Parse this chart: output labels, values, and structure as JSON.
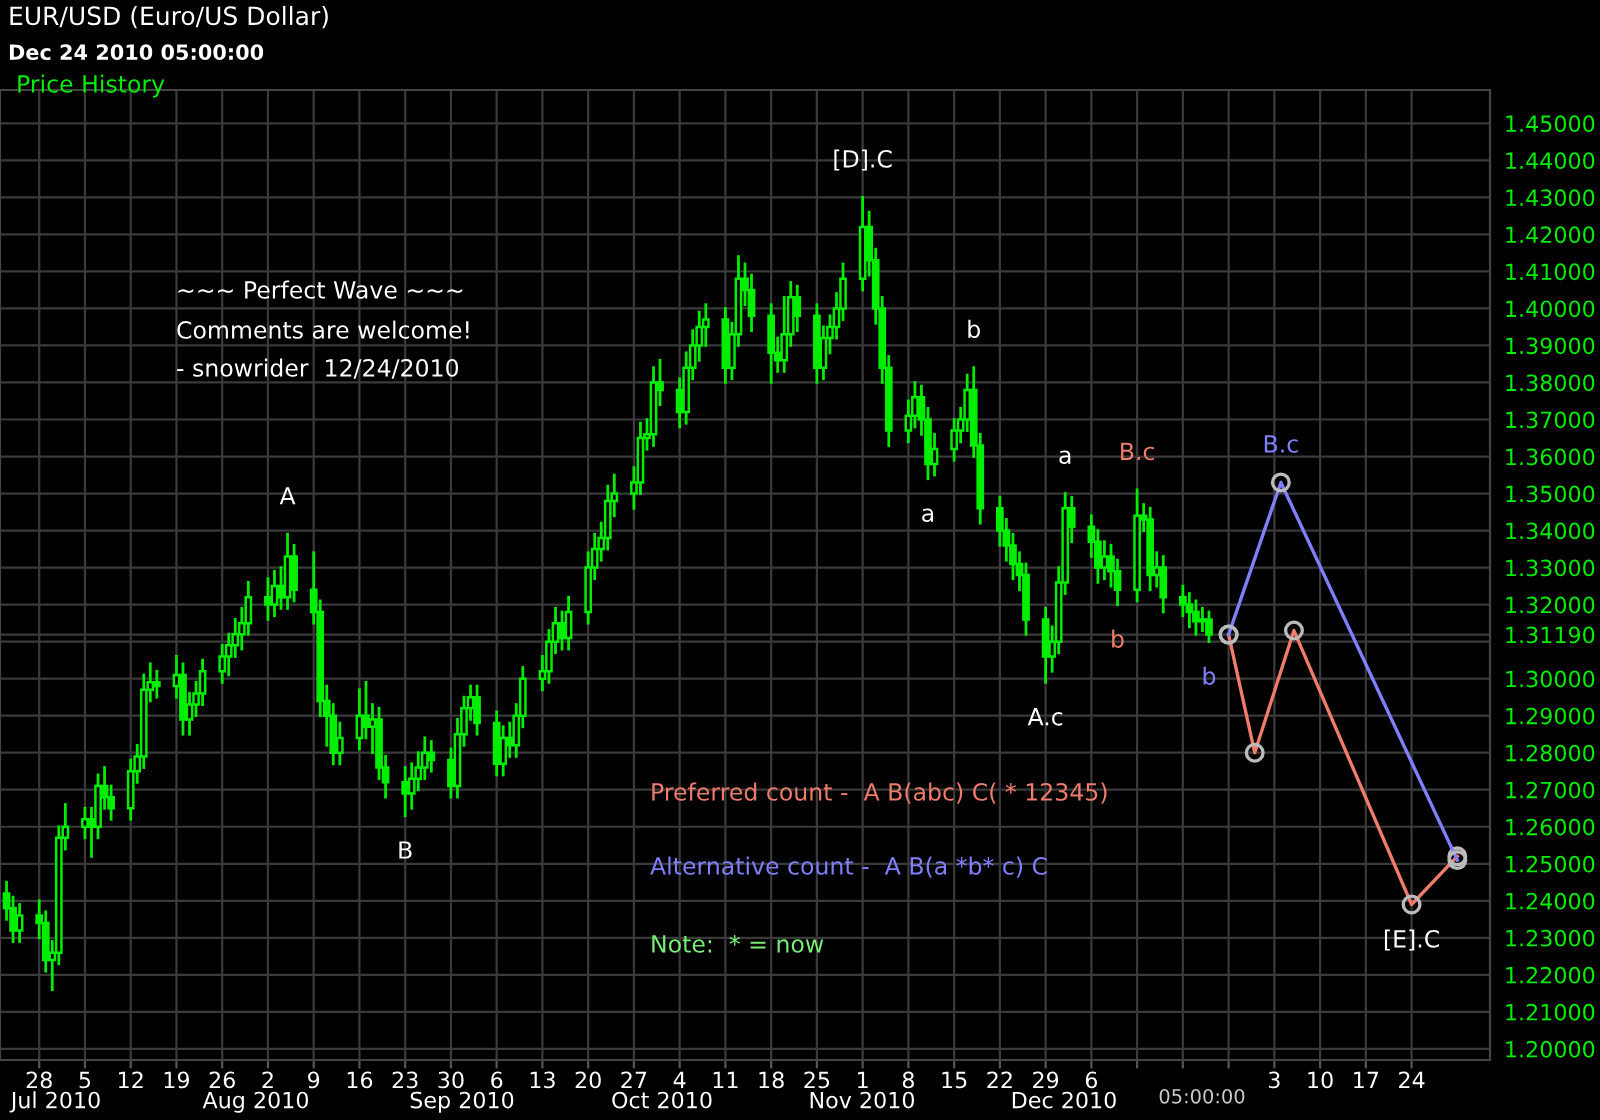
{
  "chart_data": {
    "type": "candlestick",
    "title": "EUR/USD (Euro/US Dollar)",
    "subtitle": "Dec 24 2010 05:00:00",
    "color": "#00ee00",
    "x": [
      "2010-06-23",
      "2010-06-24",
      "2010-06-25",
      "2010-06-28",
      "2010-06-29",
      "2010-06-30",
      "2010-07-01",
      "2010-07-02",
      "2010-07-05",
      "2010-07-06",
      "2010-07-07",
      "2010-07-08",
      "2010-07-09",
      "2010-07-12",
      "2010-07-13",
      "2010-07-14",
      "2010-07-15",
      "2010-07-16",
      "2010-07-19",
      "2010-07-20",
      "2010-07-21",
      "2010-07-22",
      "2010-07-23",
      "2010-07-26",
      "2010-07-27",
      "2010-07-28",
      "2010-07-29",
      "2010-07-30",
      "2010-08-02",
      "2010-08-03",
      "2010-08-04",
      "2010-08-05",
      "2010-08-06",
      "2010-08-09",
      "2010-08-10",
      "2010-08-11",
      "2010-08-12",
      "2010-08-13",
      "2010-08-16",
      "2010-08-17",
      "2010-08-18",
      "2010-08-19",
      "2010-08-20",
      "2010-08-23",
      "2010-08-24",
      "2010-08-25",
      "2010-08-26",
      "2010-08-27",
      "2010-08-30",
      "2010-08-31",
      "2010-09-01",
      "2010-09-02",
      "2010-09-03",
      "2010-09-06",
      "2010-09-07",
      "2010-09-08",
      "2010-09-09",
      "2010-09-10",
      "2010-09-13",
      "2010-09-14",
      "2010-09-15",
      "2010-09-16",
      "2010-09-17",
      "2010-09-20",
      "2010-09-21",
      "2010-09-22",
      "2010-09-23",
      "2010-09-24",
      "2010-09-27",
      "2010-09-28",
      "2010-09-29",
      "2010-09-30",
      "2010-10-01",
      "2010-10-04",
      "2010-10-05",
      "2010-10-06",
      "2010-10-07",
      "2010-10-08",
      "2010-10-11",
      "2010-10-12",
      "2010-10-13",
      "2010-10-14",
      "2010-10-15",
      "2010-10-18",
      "2010-10-19",
      "2010-10-20",
      "2010-10-21",
      "2010-10-22",
      "2010-10-25",
      "2010-10-26",
      "2010-10-27",
      "2010-10-28",
      "2010-10-29",
      "2010-11-01",
      "2010-11-02",
      "2010-11-03",
      "2010-11-04",
      "2010-11-05",
      "2010-11-08",
      "2010-11-09",
      "2010-11-10",
      "2010-11-11",
      "2010-11-12",
      "2010-11-15",
      "2010-11-16",
      "2010-11-17",
      "2010-11-18",
      "2010-11-19",
      "2010-11-22",
      "2010-11-23",
      "2010-11-24",
      "2010-11-25",
      "2010-11-26",
      "2010-11-29",
      "2010-11-30",
      "2010-12-01",
      "2010-12-02",
      "2010-12-03",
      "2010-12-06",
      "2010-12-07",
      "2010-12-08",
      "2010-12-09",
      "2010-12-10",
      "2010-12-13",
      "2010-12-14",
      "2010-12-15",
      "2010-12-16",
      "2010-12-17",
      "2010-12-20",
      "2010-12-21",
      "2010-12-22",
      "2010-12-23",
      "2010-12-24"
    ],
    "ohlc": [
      [
        1.242,
        1.245,
        1.235,
        1.238
      ],
      [
        1.238,
        1.241,
        1.229,
        1.232
      ],
      [
        1.232,
        1.239,
        1.229,
        1.236
      ],
      [
        1.236,
        1.24,
        1.23,
        1.234
      ],
      [
        1.234,
        1.237,
        1.221,
        1.224
      ],
      [
        1.224,
        1.229,
        1.216,
        1.226
      ],
      [
        1.226,
        1.26,
        1.223,
        1.257
      ],
      [
        1.257,
        1.266,
        1.254,
        1.26
      ],
      [
        1.26,
        1.265,
        1.257,
        1.262
      ],
      [
        1.262,
        1.265,
        1.252,
        1.26
      ],
      [
        1.26,
        1.274,
        1.257,
        1.271
      ],
      [
        1.271,
        1.276,
        1.265,
        1.268
      ],
      [
        1.268,
        1.271,
        1.262,
        1.265
      ],
      [
        1.265,
        1.278,
        1.262,
        1.275
      ],
      [
        1.275,
        1.282,
        1.272,
        1.279
      ],
      [
        1.279,
        1.301,
        1.276,
        1.297
      ],
      [
        1.297,
        1.304,
        1.294,
        1.299
      ],
      [
        1.299,
        1.302,
        1.295,
        1.298
      ],
      [
        1.298,
        1.306,
        1.295,
        1.301
      ],
      [
        1.301,
        1.304,
        1.285,
        1.289
      ],
      [
        1.289,
        1.296,
        1.285,
        1.293
      ],
      [
        1.293,
        1.299,
        1.29,
        1.296
      ],
      [
        1.296,
        1.305,
        1.293,
        1.302
      ],
      [
        1.302,
        1.309,
        1.299,
        1.306
      ],
      [
        1.306,
        1.312,
        1.301,
        1.309
      ],
      [
        1.309,
        1.316,
        1.306,
        1.312
      ],
      [
        1.312,
        1.319,
        1.308,
        1.315
      ],
      [
        1.315,
        1.326,
        1.312,
        1.322
      ],
      [
        1.322,
        1.327,
        1.316,
        1.32
      ],
      [
        1.32,
        1.329,
        1.317,
        1.325
      ],
      [
        1.325,
        1.33,
        1.319,
        1.322
      ],
      [
        1.322,
        1.339,
        1.319,
        1.333
      ],
      [
        1.333,
        1.336,
        1.321,
        1.324
      ],
      [
        1.324,
        1.334,
        1.315,
        1.318
      ],
      [
        1.318,
        1.321,
        1.29,
        1.294
      ],
      [
        1.294,
        1.298,
        1.282,
        1.29
      ],
      [
        1.29,
        1.293,
        1.277,
        1.28
      ],
      [
        1.28,
        1.288,
        1.277,
        1.284
      ],
      [
        1.284,
        1.297,
        1.281,
        1.29
      ],
      [
        1.29,
        1.299,
        1.284,
        1.287
      ],
      [
        1.287,
        1.293,
        1.28,
        1.289
      ],
      [
        1.289,
        1.292,
        1.273,
        1.276
      ],
      [
        1.276,
        1.279,
        1.268,
        1.272
      ],
      [
        1.272,
        1.276,
        1.263,
        1.269
      ],
      [
        1.269,
        1.277,
        1.265,
        1.273
      ],
      [
        1.273,
        1.28,
        1.27,
        1.276
      ],
      [
        1.276,
        1.284,
        1.273,
        1.28
      ],
      [
        1.28,
        1.283,
        1.275,
        1.278
      ],
      [
        1.278,
        1.281,
        1.268,
        1.271
      ],
      [
        1.271,
        1.289,
        1.268,
        1.285
      ],
      [
        1.285,
        1.295,
        1.282,
        1.292
      ],
      [
        1.292,
        1.298,
        1.289,
        1.295
      ],
      [
        1.295,
        1.298,
        1.285,
        1.288
      ],
      [
        1.288,
        1.291,
        1.274,
        1.277
      ],
      [
        1.277,
        1.287,
        1.274,
        1.284
      ],
      [
        1.284,
        1.288,
        1.279,
        1.282
      ],
      [
        1.282,
        1.293,
        1.279,
        1.29
      ],
      [
        1.29,
        1.303,
        1.287,
        1.3
      ],
      [
        1.3,
        1.306,
        1.297,
        1.302
      ],
      [
        1.302,
        1.313,
        1.299,
        1.31
      ],
      [
        1.31,
        1.319,
        1.307,
        1.315
      ],
      [
        1.315,
        1.318,
        1.308,
        1.311
      ],
      [
        1.311,
        1.322,
        1.308,
        1.318
      ],
      [
        1.318,
        1.334,
        1.315,
        1.33
      ],
      [
        1.33,
        1.339,
        1.327,
        1.335
      ],
      [
        1.335,
        1.342,
        1.332,
        1.338
      ],
      [
        1.338,
        1.352,
        1.335,
        1.348
      ],
      [
        1.348,
        1.355,
        1.344,
        1.35
      ],
      [
        1.35,
        1.357,
        1.346,
        1.353
      ],
      [
        1.353,
        1.369,
        1.35,
        1.365
      ],
      [
        1.365,
        1.37,
        1.362,
        1.366
      ],
      [
        1.366,
        1.384,
        1.363,
        1.38
      ],
      [
        1.38,
        1.386,
        1.374,
        1.378
      ],
      [
        1.378,
        1.381,
        1.368,
        1.372
      ],
      [
        1.372,
        1.388,
        1.369,
        1.384
      ],
      [
        1.384,
        1.394,
        1.381,
        1.39
      ],
      [
        1.39,
        1.399,
        1.386,
        1.395
      ],
      [
        1.395,
        1.401,
        1.39,
        1.397
      ],
      [
        1.397,
        1.4,
        1.38,
        1.384
      ],
      [
        1.384,
        1.396,
        1.381,
        1.393
      ],
      [
        1.393,
        1.414,
        1.39,
        1.408
      ],
      [
        1.408,
        1.412,
        1.401,
        1.405
      ],
      [
        1.405,
        1.409,
        1.394,
        1.398
      ],
      [
        1.398,
        1.401,
        1.38,
        1.388
      ],
      [
        1.388,
        1.392,
        1.383,
        1.386
      ],
      [
        1.386,
        1.403,
        1.383,
        1.393
      ],
      [
        1.393,
        1.407,
        1.39,
        1.403
      ],
      [
        1.403,
        1.406,
        1.394,
        1.398
      ],
      [
        1.398,
        1.401,
        1.38,
        1.384
      ],
      [
        1.384,
        1.395,
        1.381,
        1.392
      ],
      [
        1.392,
        1.398,
        1.388,
        1.395
      ],
      [
        1.395,
        1.404,
        1.392,
        1.4
      ],
      [
        1.4,
        1.412,
        1.397,
        1.408
      ],
      [
        1.408,
        1.43,
        1.405,
        1.422
      ],
      [
        1.422,
        1.426,
        1.409,
        1.413
      ],
      [
        1.413,
        1.416,
        1.396,
        1.4
      ],
      [
        1.4,
        1.403,
        1.38,
        1.384
      ],
      [
        1.384,
        1.387,
        1.363,
        1.367
      ],
      [
        1.367,
        1.375,
        1.364,
        1.371
      ],
      [
        1.371,
        1.38,
        1.368,
        1.376
      ],
      [
        1.376,
        1.379,
        1.366,
        1.37
      ],
      [
        1.37,
        1.373,
        1.354,
        1.358
      ],
      [
        1.358,
        1.366,
        1.355,
        1.362
      ],
      [
        1.362,
        1.37,
        1.359,
        1.367
      ],
      [
        1.367,
        1.373,
        1.364,
        1.37
      ],
      [
        1.37,
        1.382,
        1.367,
        1.378
      ],
      [
        1.378,
        1.384,
        1.36,
        1.363
      ],
      [
        1.363,
        1.366,
        1.342,
        1.346
      ],
      [
        1.346,
        1.349,
        1.336,
        1.34
      ],
      [
        1.34,
        1.343,
        1.332,
        1.336
      ],
      [
        1.336,
        1.339,
        1.327,
        1.331
      ],
      [
        1.331,
        1.334,
        1.324,
        1.328
      ],
      [
        1.328,
        1.331,
        1.312,
        1.316
      ],
      [
        1.316,
        1.319,
        1.299,
        1.306
      ],
      [
        1.306,
        1.314,
        1.302,
        1.31
      ],
      [
        1.31,
        1.33,
        1.307,
        1.326
      ],
      [
        1.326,
        1.35,
        1.323,
        1.346
      ],
      [
        1.346,
        1.349,
        1.337,
        1.341
      ],
      [
        1.341,
        1.344,
        1.333,
        1.337
      ],
      [
        1.337,
        1.34,
        1.326,
        1.33
      ],
      [
        1.33,
        1.337,
        1.327,
        1.333
      ],
      [
        1.333,
        1.336,
        1.325,
        1.329
      ],
      [
        1.329,
        1.332,
        1.32,
        1.324
      ],
      [
        1.324,
        1.351,
        1.321,
        1.344
      ],
      [
        1.344,
        1.347,
        1.34,
        1.343
      ],
      [
        1.343,
        1.346,
        1.324,
        1.328
      ],
      [
        1.328,
        1.334,
        1.325,
        1.33
      ],
      [
        1.33,
        1.333,
        1.318,
        1.322
      ],
      [
        1.322,
        1.325,
        1.317,
        1.32
      ],
      [
        1.32,
        1.323,
        1.314,
        1.318
      ],
      [
        1.318,
        1.321,
        1.312,
        1.3155
      ],
      [
        1.3155,
        1.319,
        1.313,
        1.316
      ],
      [
        1.316,
        1.318,
        1.31,
        1.3119
      ]
    ],
    "series": [
      {
        "type": "line",
        "color": "#f07c6c",
        "x": [
          "2010-12-27",
          "2010-12-31",
          "2011-01-06",
          "2011-01-24",
          "2011-01-31"
        ],
        "values": [
          1.3119,
          1.28,
          1.313,
          1.239,
          1.252
        ]
      },
      {
        "type": "line",
        "color": "#8080ff",
        "x": [
          "2010-12-27",
          "2011-01-04",
          "2011-01-31"
        ],
        "values": [
          1.3119,
          1.353,
          1.251
        ]
      }
    ],
    "marker": "circle",
    "line_style": "solid",
    "xlim": [
      "2010-06-22",
      "2011-02-05"
    ],
    "xticks": [
      {
        "value": "2010-06-28",
        "label": "28"
      },
      {
        "value": "2010-07-05",
        "label": "5"
      },
      {
        "value": "2010-07-12",
        "label": "12"
      },
      {
        "value": "2010-07-19",
        "label": "19"
      },
      {
        "value": "2010-07-26",
        "label": "26"
      },
      {
        "value": "2010-08-02",
        "label": "2"
      },
      {
        "value": "2010-08-09",
        "label": "9"
      },
      {
        "value": "2010-08-16",
        "label": "16"
      },
      {
        "value": "2010-08-23",
        "label": "23"
      },
      {
        "value": "2010-08-30",
        "label": "30"
      },
      {
        "value": "2010-09-06",
        "label": "6"
      },
      {
        "value": "2010-09-13",
        "label": "13"
      },
      {
        "value": "2010-09-20",
        "label": "20"
      },
      {
        "value": "2010-09-27",
        "label": "27"
      },
      {
        "value": "2010-10-04",
        "label": "4"
      },
      {
        "value": "2010-10-11",
        "label": "11"
      },
      {
        "value": "2010-10-18",
        "label": "18"
      },
      {
        "value": "2010-10-25",
        "label": "25"
      },
      {
        "value": "2010-11-01",
        "label": "1"
      },
      {
        "value": "2010-11-08",
        "label": "8"
      },
      {
        "value": "2010-11-15",
        "label": "15"
      },
      {
        "value": "2010-11-22",
        "label": "22"
      },
      {
        "value": "2010-11-29",
        "label": "29"
      },
      {
        "value": "2010-12-06",
        "label": "6"
      },
      {
        "value": "2010-12-13",
        "label": null
      },
      {
        "value": "2010-12-20",
        "label": null
      },
      {
        "value": "2010-12-27",
        "label": null
      },
      {
        "value": "2011-01-03",
        "label": "3"
      },
      {
        "value": "2011-01-10",
        "label": "10"
      },
      {
        "value": "2011-01-17",
        "label": "17"
      },
      {
        "value": "2011-01-24",
        "label": "24"
      }
    ],
    "ylim": [
      1.197,
      1.459
    ],
    "yticks": [
      {
        "value": 1.2,
        "label": "1.20000"
      },
      {
        "value": 1.21,
        "label": "1.21000"
      },
      {
        "value": 1.22,
        "label": "1.22000"
      },
      {
        "value": 1.23,
        "label": "1.23000"
      },
      {
        "value": 1.24,
        "label": "1.24000"
      },
      {
        "value": 1.25,
        "label": "1.25000"
      },
      {
        "value": 1.26,
        "label": "1.26000"
      },
      {
        "value": 1.27,
        "label": "1.27000"
      },
      {
        "value": 1.28,
        "label": "1.28000"
      },
      {
        "value": 1.29,
        "label": "1.29000"
      },
      {
        "value": 1.3,
        "label": "1.30000"
      },
      {
        "value": 1.31,
        "label": null
      },
      {
        "value": 1.3119,
        "label": "1.31190"
      },
      {
        "value": 1.32,
        "label": "1.32000"
      },
      {
        "value": 1.33,
        "label": "1.33000"
      },
      {
        "value": 1.34,
        "label": "1.34000"
      },
      {
        "value": 1.35,
        "label": "1.35000"
      },
      {
        "value": 1.36,
        "label": "1.36000"
      },
      {
        "value": 1.37,
        "label": "1.37000"
      },
      {
        "value": 1.38,
        "label": "1.38000"
      },
      {
        "value": 1.39,
        "label": "1.39000"
      },
      {
        "value": 1.4,
        "label": "1.40000"
      },
      {
        "value": 1.41,
        "label": "1.41000"
      },
      {
        "value": 1.42,
        "label": "1.42000"
      },
      {
        "value": 1.43,
        "label": "1.43000"
      },
      {
        "value": 1.44,
        "label": "1.44000"
      },
      {
        "value": 1.45,
        "label": "1.45000"
      }
    ],
    "grid": true,
    "annotations": [
      {
        "text": "A",
        "x": "2010-08-05",
        "y": 1.339
      },
      {
        "text": "B",
        "x": "2010-08-23",
        "y": 1.263
      },
      {
        "text": "[D].C",
        "x": "2010-11-01",
        "y": 1.43
      },
      {
        "text": "a",
        "x": "2010-11-11",
        "y": 1.354
      },
      {
        "text": "b",
        "x": "2010-11-18",
        "y": 1.384
      },
      {
        "text": "A.c",
        "x": "2010-11-29",
        "y": 1.299
      },
      {
        "text": "a",
        "x": "2010-12-02",
        "y": 1.35
      },
      {
        "text": "B.c",
        "x": "2010-12-13",
        "y": 1.351
      },
      {
        "text": "b",
        "x": "2010-12-10",
        "y": 1.32
      },
      {
        "text": "b",
        "x": "2010-12-24",
        "y": 1.31
      },
      {
        "text": "B.c",
        "x": "2011-01-04",
        "y": 1.353
      },
      {
        "text": "[E].C",
        "x": "2011-01-24",
        "y": 1.239
      },
      "Price History",
      "~~~ Perfect Wave ~~~",
      "Comments are welcome!",
      "- snowrider  12/24/2010",
      "Preferred count -  A B(abc) C( * 12345)",
      "Alternative count -  A B(a *b* c) C",
      "Note:  * = now",
      "Jul 2010",
      "Aug 2010",
      "Sep 2010",
      "Oct 2010",
      "Nov 2010",
      "Dec 2010",
      "05:00:00"
    ]
  }
}
